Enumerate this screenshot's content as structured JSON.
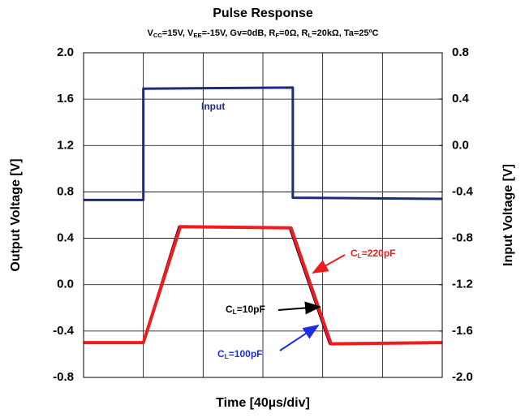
{
  "chart_data": {
    "type": "line",
    "title": "Pulse Response",
    "subtitle": [
      "V",
      "CC",
      "=15V, V",
      "EE",
      "=-15V, Gv=0dB, R",
      "F",
      "=0Ω, R",
      "L",
      "=20kΩ, Ta=25ºC"
    ],
    "xlabel": "Time [40µs/div]",
    "ylabel": "Output Voltage [V]",
    "y2label": "Input Voltage [V]",
    "xlim": [
      0,
      6
    ],
    "xticks": [
      0,
      1,
      2,
      3,
      4,
      5,
      6
    ],
    "ylim": [
      -0.8,
      2.0
    ],
    "yticks": [
      {
        "value": 2.0,
        "label": "2.0"
      },
      1.6,
      1.2,
      0.8,
      0.4,
      {
        "value": 0,
        "label": "0.0"
      },
      -0.4,
      -0.8
    ],
    "y2lim": [
      -2.0,
      0.8
    ],
    "y2ticks": [
      0.8,
      0.4,
      {
        "value": 0,
        "label": "0.0"
      },
      -0.4,
      -0.8,
      -1.2,
      -1.6,
      {
        "value": -2.0,
        "label": "-2.0"
      }
    ],
    "grid": true,
    "series": [
      {
        "name": "Input",
        "color": "#1c2a80",
        "axis": "y2",
        "x": [
          0,
          1,
          1,
          3.5,
          3.5,
          6
        ],
        "values": [
          -0.47,
          -0.47,
          0.49,
          0.5,
          -0.45,
          -0.46
        ]
      },
      {
        "name": [
          "C",
          "L",
          "=10pF"
        ],
        "color": "#000000",
        "x": [
          0,
          1,
          1.6,
          3.45,
          4.12,
          6
        ],
        "values": [
          -0.5,
          -0.5,
          0.5,
          0.49,
          -0.51,
          -0.5
        ]
      },
      {
        "name": [
          "C",
          "L",
          "=100pF"
        ],
        "color": "#1a2ee0",
        "x": [
          0,
          1,
          1.61,
          3.46,
          4.13,
          6
        ],
        "values": [
          -0.5,
          -0.5,
          0.5,
          0.49,
          -0.51,
          -0.5
        ]
      },
      {
        "name": [
          "C",
          "L",
          "=220pF"
        ],
        "color": "#ee1c1c",
        "x": [
          0,
          1,
          1.62,
          3.47,
          4.14,
          6
        ],
        "values": [
          -0.5,
          -0.5,
          0.5,
          0.49,
          -0.51,
          -0.5
        ]
      }
    ]
  }
}
